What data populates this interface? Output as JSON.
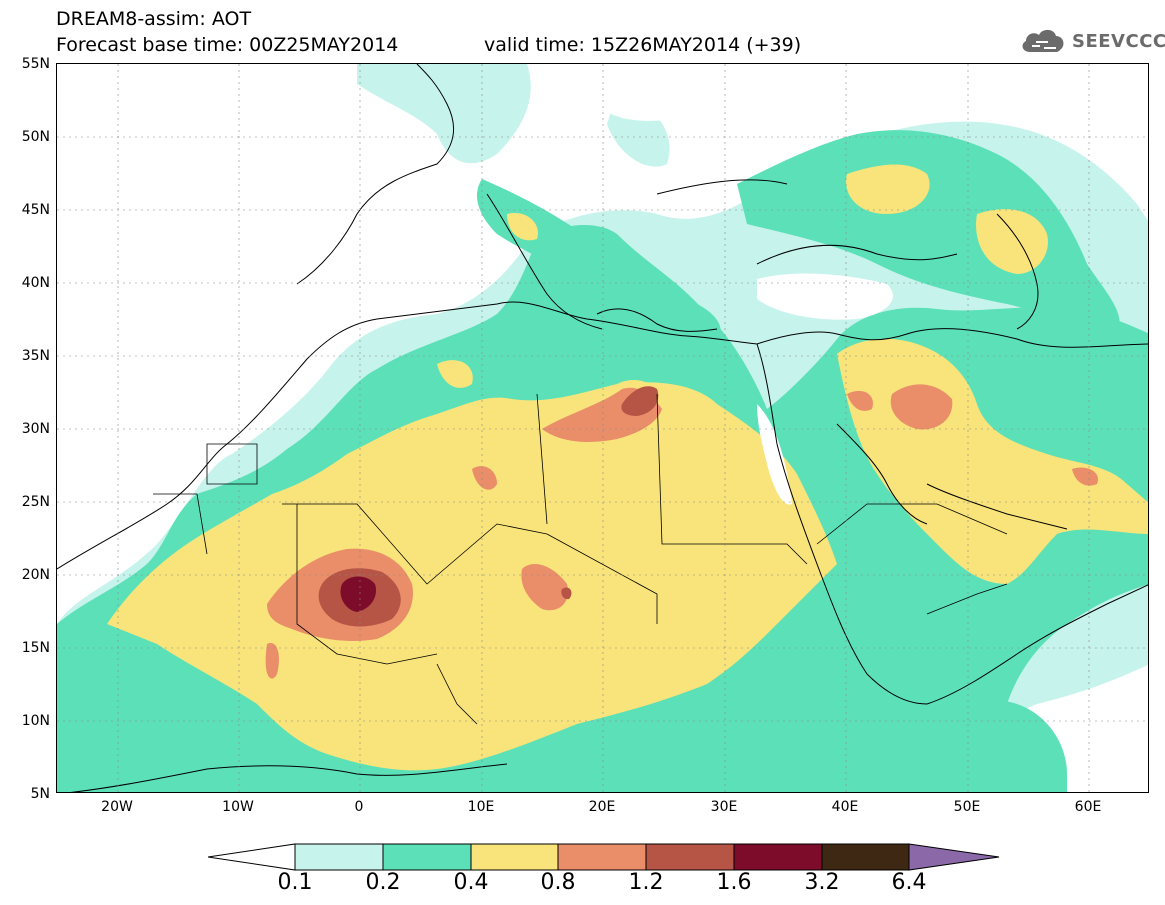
{
  "header": {
    "title": "DREAM8-assim: AOT",
    "forecast_line": "Forecast base time: 00Z25MAY2014",
    "valid_line": "valid time: 15Z26MAY2014 (+39)",
    "logo_text": "SEEVCCC",
    "logo_icon": "cloud-icon"
  },
  "axes": {
    "lat_labels": [
      "55N",
      "50N",
      "45N",
      "40N",
      "35N",
      "30N",
      "25N",
      "20N",
      "15N",
      "10N",
      "5N"
    ],
    "lon_labels": [
      "20W",
      "10W",
      "0",
      "10E",
      "20E",
      "30E",
      "40E",
      "50E",
      "60E"
    ],
    "lat_values": [
      55,
      50,
      45,
      40,
      35,
      30,
      25,
      20,
      15,
      10,
      5
    ],
    "lon_values": [
      -20,
      -10,
      0,
      10,
      20,
      30,
      40,
      50,
      60
    ],
    "lon_range": [
      -25,
      65
    ],
    "lat_range": [
      5,
      55
    ],
    "grid": "dotted"
  },
  "legend": {
    "labels": [
      "0.1",
      "0.2",
      "0.4",
      "0.8",
      "1.2",
      "1.6",
      "3.2",
      "6.4"
    ],
    "colors": [
      "#ffffff",
      "#c6f3ec",
      "#5ce0b8",
      "#f8e47a",
      "#ea8e6a",
      "#b65446",
      "#7c0c2a",
      "#3e2814",
      "#8b69a8"
    ]
  }
}
